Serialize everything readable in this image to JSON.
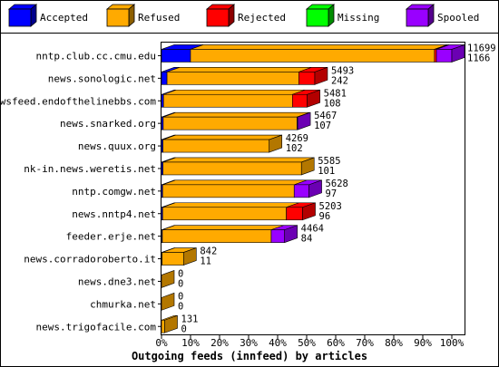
{
  "chart_data": {
    "type": "bar",
    "orientation": "horizontal",
    "stacked": true,
    "style": "3d",
    "title": "",
    "xlabel": "Outgoing feeds (innfeed) by articles",
    "ylabel": "",
    "xlim": [
      0,
      100
    ],
    "x_tick_labels": [
      "0%",
      "10%",
      "20%",
      "30%",
      "40%",
      "50%",
      "60%",
      "70%",
      "80%",
      "90%",
      "100%"
    ],
    "legend_position": "top",
    "legend": [
      {
        "name": "Accepted",
        "color": "#0000ff"
      },
      {
        "name": "Refused",
        "color": "#ffaa00"
      },
      {
        "name": "Rejected",
        "color": "#ff0000"
      },
      {
        "name": "Missing",
        "color": "#00ff00"
      },
      {
        "name": "Spooled",
        "color": "#9900ff"
      }
    ],
    "categories": [
      "nntp.club.cc.cmu.edu",
      "news.sonologic.net",
      "newsfeed.endofthelinebbs.com",
      "news.snarked.org",
      "news.quux.org",
      "nk-in.news.weretis.net",
      "nntp.comgw.net",
      "news.nntp4.net",
      "feeder.erje.net",
      "news.corradoroberto.it",
      "news.dne3.net",
      "chmurka.net",
      "news.trigofacile.com"
    ],
    "bar_labels": [
      [
        "11699",
        "1166"
      ],
      [
        "5493",
        "242"
      ],
      [
        "5481",
        "108"
      ],
      [
        "5467",
        "107"
      ],
      [
        "4269",
        "102"
      ],
      [
        "5585",
        "101"
      ],
      [
        "5628",
        "97"
      ],
      [
        "5203",
        "96"
      ],
      [
        "4464",
        "84"
      ],
      [
        "842",
        "11"
      ],
      [
        "0",
        "0"
      ],
      [
        "0",
        "0"
      ],
      [
        "131",
        "0"
      ]
    ],
    "series": [
      {
        "name": "Accepted",
        "values": [
          10,
          1.9,
          0.7,
          0.6,
          0.5,
          0.5,
          0.4,
          0.4,
          0.3,
          0.2,
          0,
          0,
          0
        ]
      },
      {
        "name": "Refused",
        "values": [
          84,
          45.4,
          44.4,
          46.1,
          36.6,
          47.7,
          45.3,
          42.6,
          37.5,
          7.4,
          0,
          0,
          1.1
        ]
      },
      {
        "name": "Rejected",
        "values": [
          0.7,
          5.5,
          5.1,
          0,
          0,
          0,
          0,
          5.6,
          0,
          0,
          0,
          0,
          0
        ]
      },
      {
        "name": "Missing",
        "values": [
          0,
          0,
          0,
          0,
          0,
          0,
          0,
          0,
          0,
          0,
          0,
          0,
          0
        ]
      },
      {
        "name": "Spooled",
        "values": [
          5.3,
          0,
          0,
          0.2,
          0,
          0,
          5.1,
          0,
          4.6,
          0,
          0,
          0,
          0
        ]
      }
    ]
  }
}
